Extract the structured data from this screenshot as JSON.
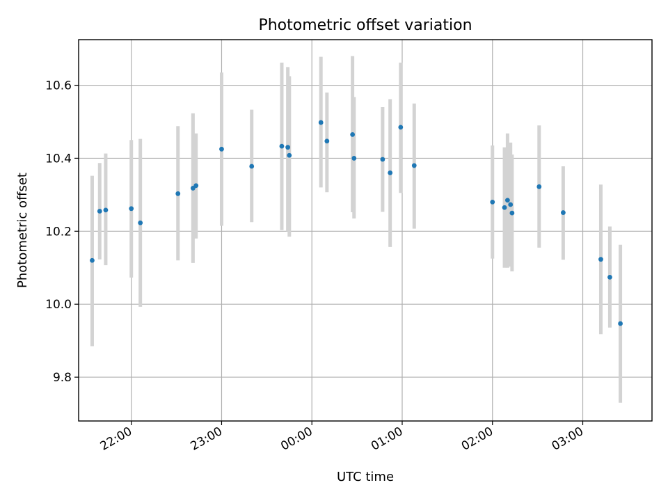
{
  "chart_data": {
    "type": "scatter",
    "title": "Photometric offset variation",
    "xlabel": "UTC time",
    "ylabel": "Photometric offset",
    "x_tick_labels": [
      "22:00",
      "23:00",
      "00:00",
      "01:00",
      "02:00",
      "03:00"
    ],
    "y_tick_labels": [
      "9.8",
      "10.0",
      "10.2",
      "10.4",
      "10.6"
    ],
    "y_ticks": [
      9.8,
      10.0,
      10.2,
      10.4,
      10.6
    ],
    "x_ticks": [
      "2024-01-01 22:00",
      "2024-01-01 23:00",
      "2024-01-02 00:00",
      "2024-01-02 01:00",
      "2024-01-02 02:00",
      "2024-01-02 03:00"
    ],
    "xlim": [
      "2024-01-01 21:25",
      "2024-01-02 03:46"
    ],
    "ylim": [
      9.68,
      10.725
    ],
    "grid": true,
    "colors": {
      "marker": "#1f77b4",
      "errorbar": "#d3d3d3",
      "grid": "#b0b0b0"
    },
    "series": [
      {
        "points": [
          {
            "x": "2024-01-01 21:34",
            "y": 10.12,
            "ylo": 9.885,
            "yhi": 10.352
          },
          {
            "x": "2024-01-01 21:39",
            "y": 10.255,
            "ylo": 10.123,
            "yhi": 10.387
          },
          {
            "x": "2024-01-01 21:43",
            "y": 10.258,
            "ylo": 10.107,
            "yhi": 10.413
          },
          {
            "x": "2024-01-01 22:00",
            "y": 10.262,
            "ylo": 10.073,
            "yhi": 10.45
          },
          {
            "x": "2024-01-01 22:06",
            "y": 10.223,
            "ylo": 9.993,
            "yhi": 10.453
          },
          {
            "x": "2024-01-01 22:31",
            "y": 10.303,
            "ylo": 10.12,
            "yhi": 10.488
          },
          {
            "x": "2024-01-01 22:41",
            "y": 10.318,
            "ylo": 10.113,
            "yhi": 10.523
          },
          {
            "x": "2024-01-01 22:43",
            "y": 10.325,
            "ylo": 10.18,
            "yhi": 10.468
          },
          {
            "x": "2024-01-01 23:00",
            "y": 10.425,
            "ylo": 10.215,
            "yhi": 10.635
          },
          {
            "x": "2024-01-01 23:20",
            "y": 10.378,
            "ylo": 10.225,
            "yhi": 10.533
          },
          {
            "x": "2024-01-01 23:40",
            "y": 10.433,
            "ylo": 10.203,
            "yhi": 10.662
          },
          {
            "x": "2024-01-01 23:44",
            "y": 10.43,
            "ylo": 10.2,
            "yhi": 10.65
          },
          {
            "x": "2024-01-01 23:45",
            "y": 10.408,
            "ylo": 10.185,
            "yhi": 10.625
          },
          {
            "x": "2024-01-02 00:06",
            "y": 10.498,
            "ylo": 10.32,
            "yhi": 10.678
          },
          {
            "x": "2024-01-02 00:10",
            "y": 10.447,
            "ylo": 10.307,
            "yhi": 10.58
          },
          {
            "x": "2024-01-02 00:27",
            "y": 10.465,
            "ylo": 10.252,
            "yhi": 10.68
          },
          {
            "x": "2024-01-02 00:28",
            "y": 10.4,
            "ylo": 10.235,
            "yhi": 10.568
          },
          {
            "x": "2024-01-02 00:47",
            "y": 10.397,
            "ylo": 10.253,
            "yhi": 10.54
          },
          {
            "x": "2024-01-02 00:52",
            "y": 10.36,
            "ylo": 10.157,
            "yhi": 10.562
          },
          {
            "x": "2024-01-02 00:59",
            "y": 10.485,
            "ylo": 10.305,
            "yhi": 10.662
          },
          {
            "x": "2024-01-02 01:08",
            "y": 10.38,
            "ylo": 10.207,
            "yhi": 10.55
          },
          {
            "x": "2024-01-02 02:00",
            "y": 10.28,
            "ylo": 10.125,
            "yhi": 10.435
          },
          {
            "x": "2024-01-02 02:08",
            "y": 10.265,
            "ylo": 10.1,
            "yhi": 10.43
          },
          {
            "x": "2024-01-02 02:10",
            "y": 10.285,
            "ylo": 10.1,
            "yhi": 10.468
          },
          {
            "x": "2024-01-02 02:12",
            "y": 10.273,
            "ylo": 10.103,
            "yhi": 10.443
          },
          {
            "x": "2024-01-02 02:13",
            "y": 10.25,
            "ylo": 10.09,
            "yhi": 10.41
          },
          {
            "x": "2024-01-02 02:31",
            "y": 10.322,
            "ylo": 10.155,
            "yhi": 10.49
          },
          {
            "x": "2024-01-02 02:47",
            "y": 10.251,
            "ylo": 10.122,
            "yhi": 10.378
          },
          {
            "x": "2024-01-02 03:12",
            "y": 10.123,
            "ylo": 9.918,
            "yhi": 10.328
          },
          {
            "x": "2024-01-02 03:18",
            "y": 10.074,
            "ylo": 9.936,
            "yhi": 10.213
          },
          {
            "x": "2024-01-02 03:25",
            "y": 9.947,
            "ylo": 9.73,
            "yhi": 10.163
          }
        ]
      }
    ]
  }
}
